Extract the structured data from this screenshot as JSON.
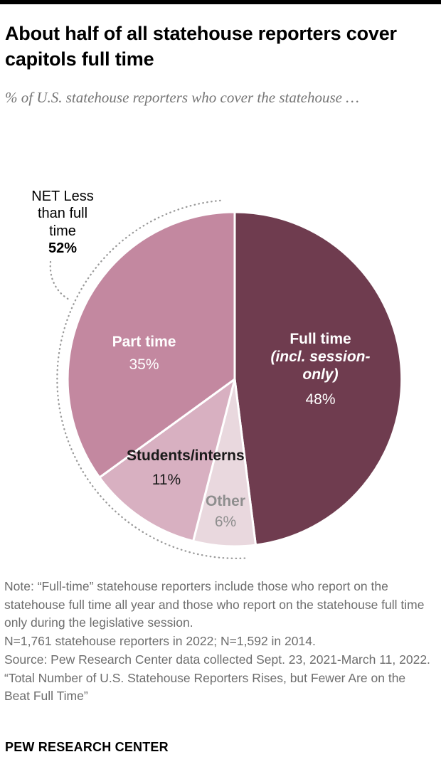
{
  "page": {
    "title": "About half of all statehouse reporters cover capitols full time",
    "subtitle": "% of U.S. statehouse reporters who cover the statehouse …"
  },
  "chart_data": {
    "type": "pie",
    "title": "About half of all statehouse reporters cover capitols full time",
    "start_angle_deg": 0,
    "direction": "clockwise",
    "slices": [
      {
        "id": "full-time",
        "label": "Full time",
        "label_sub": "(incl. session-only)",
        "value": 48,
        "pct_label": "48%",
        "color": "#6f3c4f",
        "text_color": "#ffffff"
      },
      {
        "id": "other",
        "label": "Other",
        "value": 6,
        "pct_label": "6%",
        "color": "#e9d8de",
        "text_color": "#8e8e8e"
      },
      {
        "id": "students-interns",
        "label": "Students/interns",
        "value": 11,
        "pct_label": "11%",
        "color": "#d8b0c1",
        "text_color": "#1a1a1a"
      },
      {
        "id": "part-time",
        "label": "Part time",
        "value": 35,
        "pct_label": "35%",
        "color": "#c388a0",
        "text_color": "#ffffff"
      }
    ],
    "annotation": {
      "label": "NET Less than full time",
      "value_label": "52%",
      "net_value": 52,
      "covers_slices": [
        "other",
        "students-interns",
        "part-time"
      ]
    },
    "legend": "none",
    "slice_border_color": "#ffffff"
  },
  "notes": {
    "note": "Note: “Full-time” statehouse reporters include those who report on the statehouse full time all year and those who report on the statehouse full time only during the legislative session.",
    "sample": "N=1,761 statehouse reporters in 2022; N=1,592 in 2014.",
    "source": "Source: Pew Research Center data collected Sept. 23, 2021-March 11, 2022.",
    "report_title": "“Total Number of U.S. Statehouse Reporters Rises, but Fewer Are on the Beat Full Time”"
  },
  "footer": {
    "brand": "PEW RESEARCH CENTER"
  }
}
